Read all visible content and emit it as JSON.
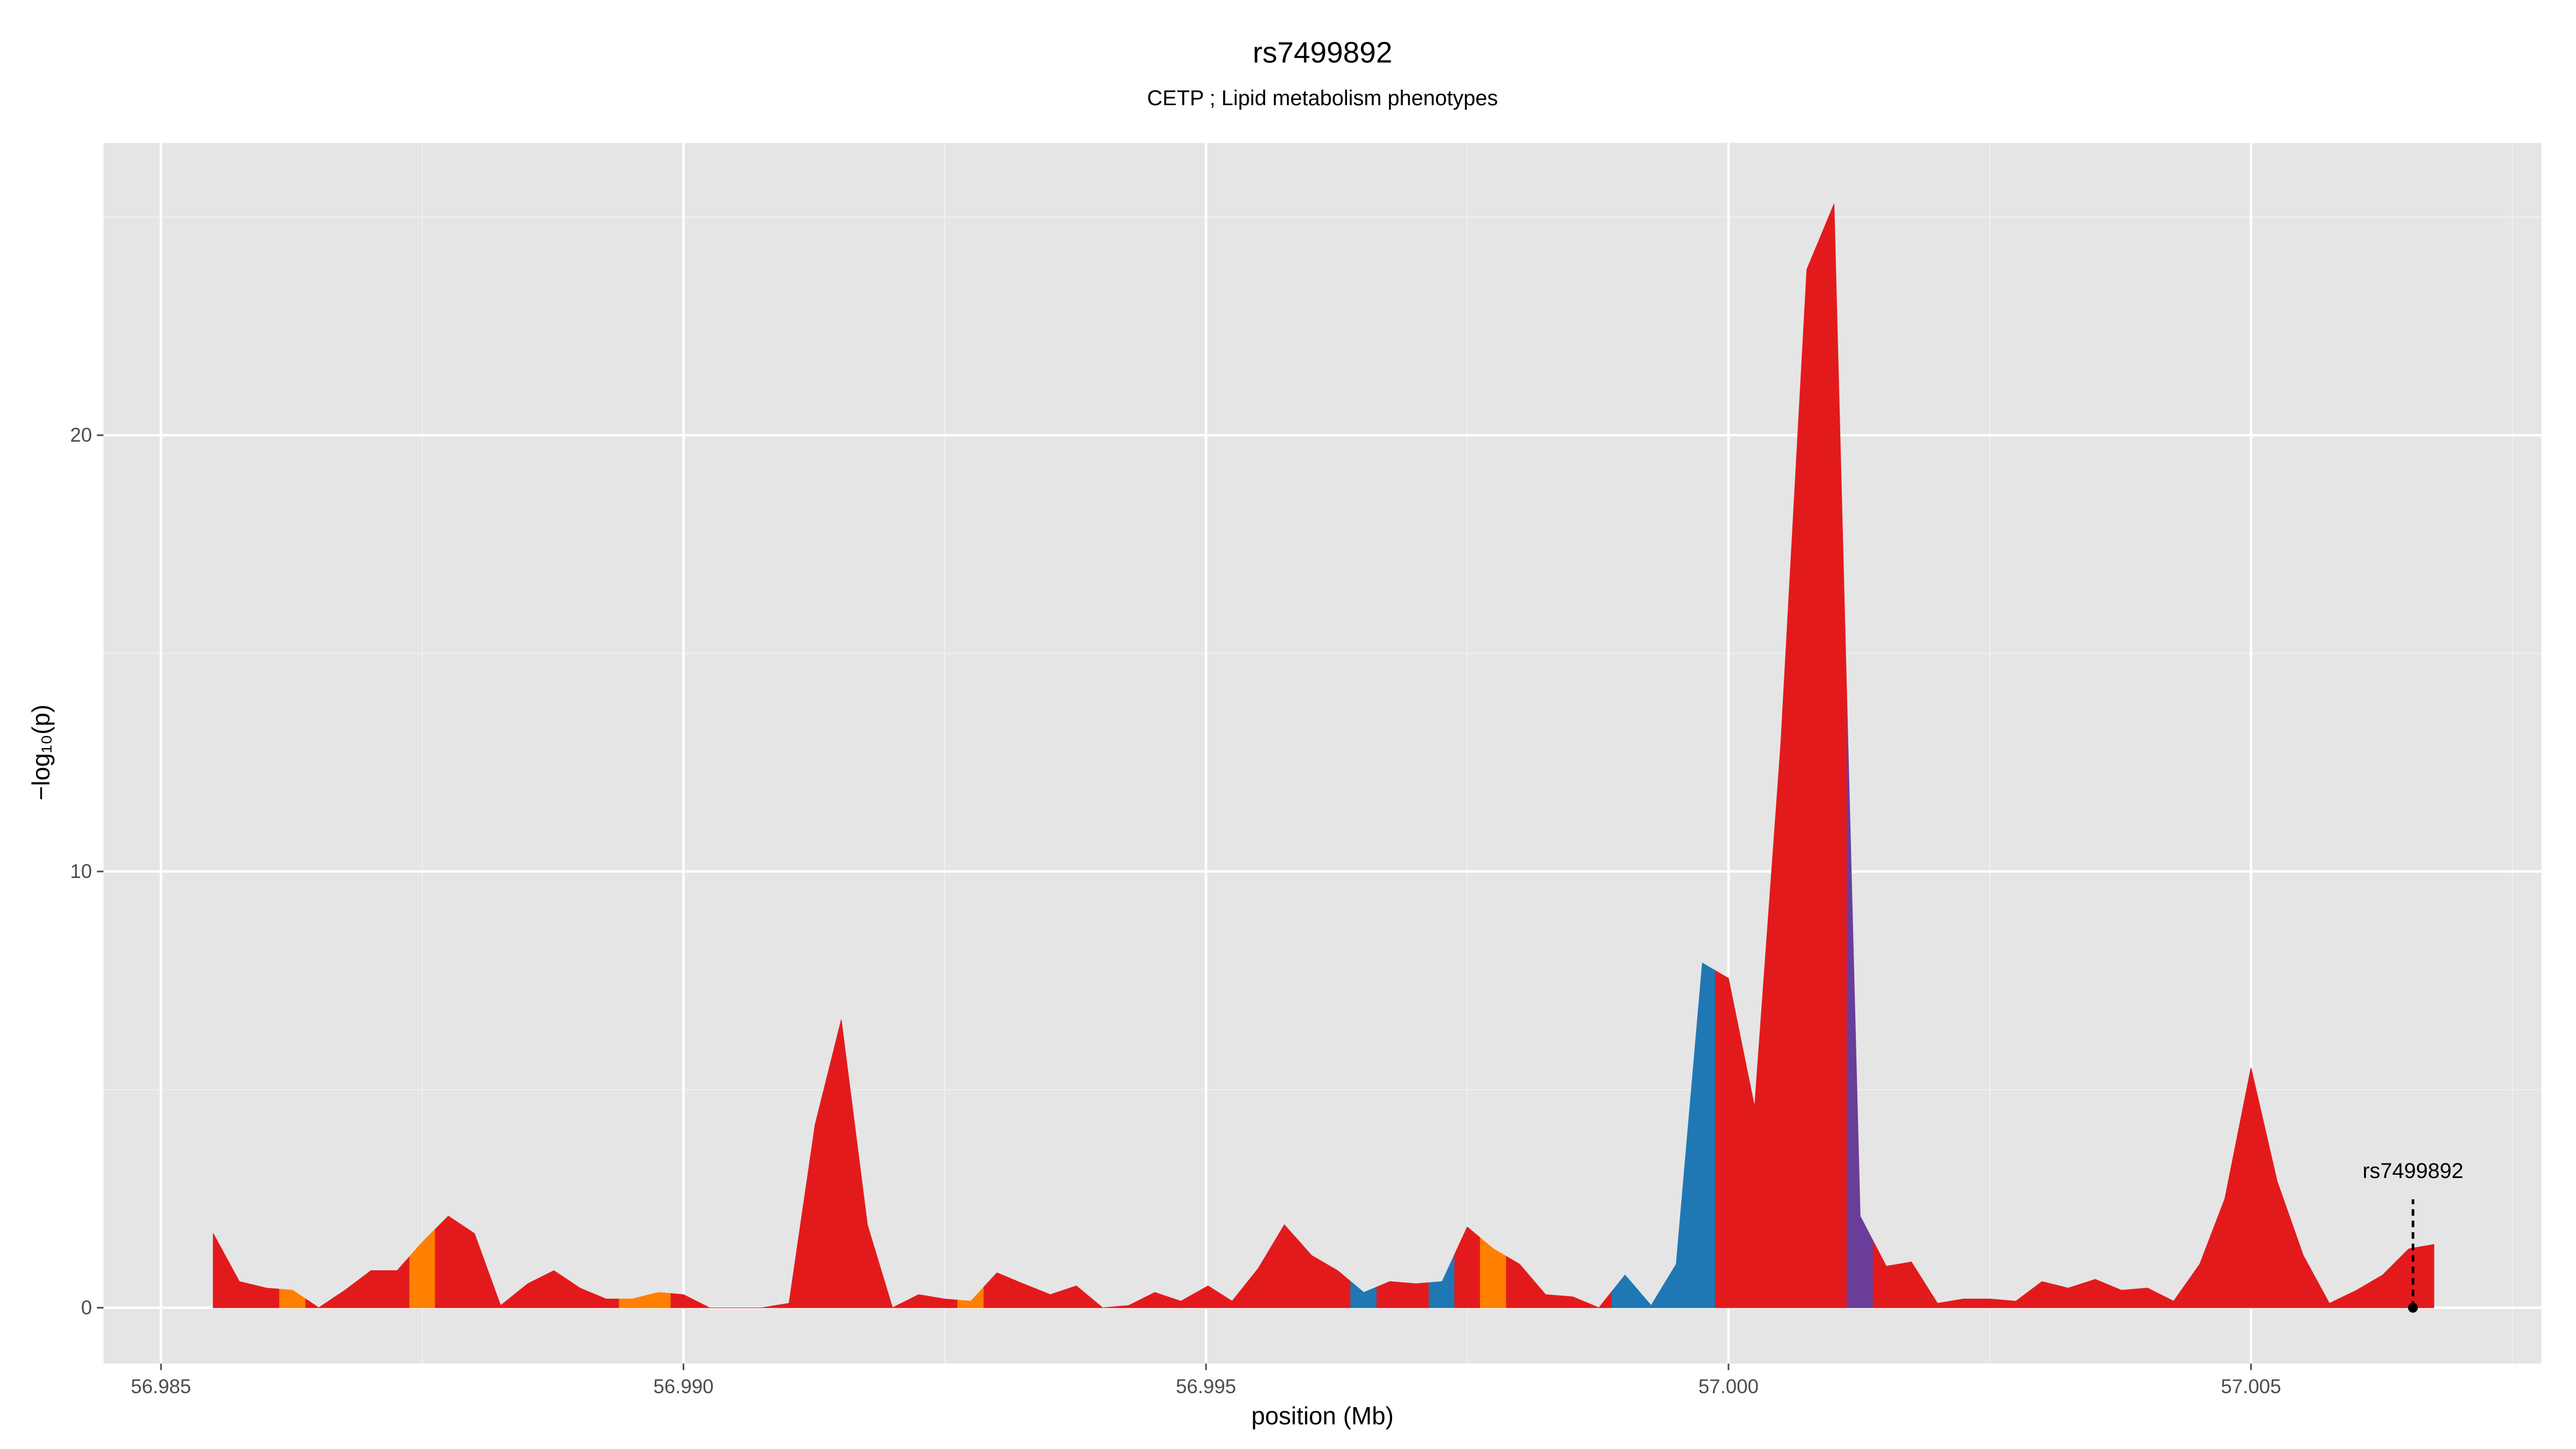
{
  "chart_data": {
    "type": "area",
    "title": "rs7499892",
    "subtitle": "CETP ; Lipid metabolism phenotypes",
    "x_label": "position (Mb)",
    "y_label": "−log₁₀(p)",
    "x": [
      56.9855,
      56.98575,
      56.98601,
      56.98626,
      56.98651,
      56.98676,
      56.98701,
      56.98726,
      56.9875,
      56.98775,
      56.988,
      56.98825,
      56.98851,
      56.98876,
      56.98901,
      56.98926,
      56.98951,
      56.98976,
      56.99,
      56.99025,
      56.9905,
      56.99075,
      56.99101,
      56.99126,
      56.99151,
      56.99176,
      56.992,
      56.99225,
      56.9925,
      56.99275,
      56.993,
      56.99325,
      56.99351,
      56.99376,
      56.99401,
      56.99426,
      56.99451,
      56.99476,
      56.99502,
      56.99525,
      56.9955,
      56.99575,
      56.99601,
      56.99626,
      56.99651,
      56.99676,
      56.99701,
      56.99726,
      56.9975,
      56.99775,
      56.998,
      56.99825,
      56.99851,
      56.99876,
      56.99901,
      56.99926,
      56.9995,
      56.99975,
      57.0,
      57.00025,
      57.0005,
      57.00075,
      57.00101,
      57.00126,
      57.00151,
      57.00175,
      57.002,
      57.00225,
      57.0025,
      57.00275,
      57.003,
      57.00325,
      57.00351,
      57.00376,
      57.00401,
      57.00426,
      57.00451,
      57.00475,
      57.005,
      57.00525,
      57.0055,
      57.00575,
      57.00601,
      57.00626,
      57.00651,
      57.00675
    ],
    "values": [
      1.7,
      0.6,
      0.45,
      0.4,
      0.0,
      0.4,
      0.85,
      0.85,
      1.5,
      2.1,
      1.7,
      0.05,
      0.55,
      0.85,
      0.45,
      0.2,
      0.2,
      0.35,
      0.3,
      0.0,
      0.0,
      0.0,
      0.1,
      4.2,
      6.6,
      1.9,
      0.0,
      0.3,
      0.2,
      0.15,
      0.8,
      0.55,
      0.3,
      0.5,
      0.0,
      0.05,
      0.35,
      0.15,
      0.5,
      0.15,
      0.9,
      1.9,
      1.2,
      0.85,
      0.35,
      0.6,
      0.55,
      0.6,
      1.85,
      1.35,
      1.0,
      0.3,
      0.25,
      0.0,
      0.75,
      0.05,
      1.0,
      7.9,
      7.55,
      4.6,
      12.9,
      23.8,
      25.3,
      2.1,
      0.95,
      1.05,
      0.1,
      0.2,
      0.2,
      0.15,
      0.6,
      0.45,
      0.65,
      0.4,
      0.45,
      0.15,
      1.0,
      2.5,
      5.5,
      2.9,
      1.2,
      0.1,
      0.4,
      0.75,
      1.35,
      1.45
    ],
    "colors": [
      "#e31a1c",
      "#e31a1c",
      "#e31a1c",
      "#ff7f00",
      "#e31a1c",
      "#e31a1c",
      "#e31a1c",
      "#e31a1c",
      "#ff7f00",
      "#e31a1c",
      "#e31a1c",
      "#e31a1c",
      "#e31a1c",
      "#e31a1c",
      "#e31a1c",
      "#e31a1c",
      "#ff7f00",
      "#ff7f00",
      "#e31a1c",
      "#e31a1c",
      "#e31a1c",
      "#e31a1c",
      "#e31a1c",
      "#e31a1c",
      "#e31a1c",
      "#e31a1c",
      "#e31a1c",
      "#e31a1c",
      "#e31a1c",
      "#ff7f00",
      "#e31a1c",
      "#e31a1c",
      "#e31a1c",
      "#e31a1c",
      "#e31a1c",
      "#e31a1c",
      "#e31a1c",
      "#e31a1c",
      "#e31a1c",
      "#e31a1c",
      "#e31a1c",
      "#e31a1c",
      "#e31a1c",
      "#e31a1c",
      "#1f78b4",
      "#e31a1c",
      "#e31a1c",
      "#1f78b4",
      "#e31a1c",
      "#ff7f00",
      "#e31a1c",
      "#e31a1c",
      "#e31a1c",
      "#e31a1c",
      "#1f78b4",
      "#1f78b4",
      "#1f78b4",
      "#1f78b4",
      "#e31a1c",
      "#e31a1c",
      "#e31a1c",
      "#e31a1c",
      "#e31a1c",
      "#6a3d9a",
      "#e31a1c",
      "#e31a1c",
      "#e31a1c",
      "#e31a1c",
      "#e31a1c",
      "#e31a1c",
      "#e31a1c",
      "#e31a1c",
      "#e31a1c",
      "#e31a1c",
      "#e31a1c",
      "#e31a1c",
      "#e31a1c",
      "#e31a1c",
      "#e31a1c",
      "#e31a1c",
      "#e31a1c",
      "#e31a1c",
      "#e31a1c",
      "#e31a1c",
      "#e31a1c",
      "#e31a1c"
    ],
    "annotation": {
      "label": "rs7499892",
      "x": 57.00655,
      "y": 0
    },
    "xlim": [
      56.98445,
      57.00778
    ],
    "ylim": [
      -1.28,
      26.7
    ],
    "xticks": [
      56.985,
      {
        "value": 56.99,
        "label": "56.990"
      },
      56.995,
      {
        "value": 57.0,
        "label": "57.000"
      },
      57.005
    ],
    "yticks": [
      0,
      10,
      20
    ],
    "grid": true,
    "minor_grid": true
  }
}
